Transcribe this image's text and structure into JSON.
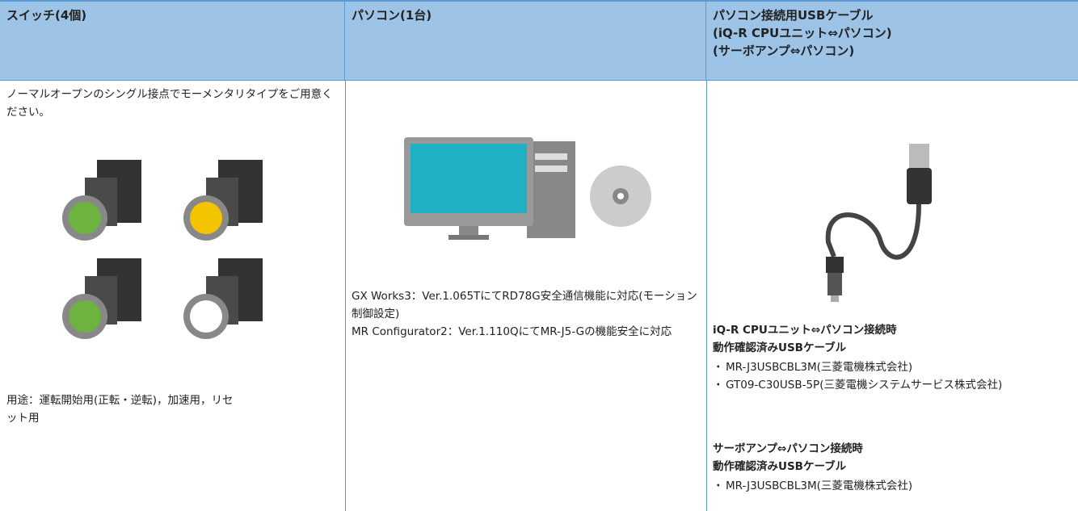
{
  "columns": [
    {
      "header": [
        "スイッチ(4個)"
      ],
      "description": "ノーマルオープンのシングル接点でモーメンタリタイプをご用意ください。",
      "usage": "用途：運転開始用(正転・逆転)，加速用，リセット用"
    },
    {
      "header": [
        "パソコン(1台)"
      ],
      "notes": [
        "GX Works3：Ver.1.065TにてRD78G安全通信機能に対応(モーション制御設定)",
        "MR Configurator2：Ver.1.110QにてMR-J5-Gの機能安全に対応"
      ]
    },
    {
      "header": [
        "パソコン接続用USBケーブル",
        "(iQ-R CPUユニット⇔パソコン)",
        "(サーボアンプ⇔パソコン)"
      ],
      "groups": [
        {
          "title": [
            "iQ-R CPUユニット⇔パソコン接続時",
            "動作確認済みUSBケーブル"
          ],
          "items": [
            "MR-J3USBCBL3M(三菱電機株式会社)",
            "GT09-C30USB-5P(三菱電機システムサービス株式会社)"
          ]
        },
        {
          "title": [
            "サーボアンプ⇔パソコン接続時",
            "動作確認済みUSBケーブル"
          ],
          "items": [
            "MR-J3USBCBL3M(三菱電機株式会社)"
          ]
        }
      ]
    }
  ]
}
